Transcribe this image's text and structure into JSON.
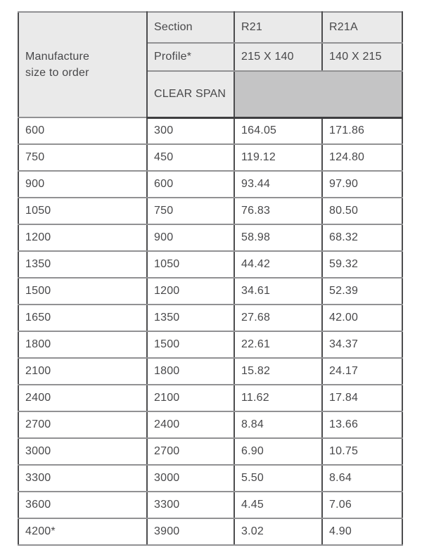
{
  "table": {
    "header": {
      "manufacture_line1": "Manufacture",
      "manufacture_line2": "size to order",
      "section_label": "Section",
      "profile_label": "Profile*",
      "clear_span_label": "CLEAR SPAN",
      "col_r21": "R21",
      "col_r21a": "R21A",
      "r21_profile": "215 X 140",
      "r21a_profile": "140 X 215"
    },
    "rows": [
      [
        "600",
        "300",
        "164.05",
        "171.86"
      ],
      [
        "750",
        "450",
        "119.12",
        "124.80"
      ],
      [
        "900",
        "600",
        "93.44",
        "97.90"
      ],
      [
        "1050",
        "750",
        "76.83",
        "80.50"
      ],
      [
        "1200",
        "900",
        "58.98",
        "68.32"
      ],
      [
        "1350",
        "1050",
        "44.42",
        "59.32"
      ],
      [
        "1500",
        "1200",
        "34.61",
        "52.39"
      ],
      [
        "1650",
        "1350",
        "27.68",
        "42.00"
      ],
      [
        "1800",
        "1500",
        "22.61",
        "34.37"
      ],
      [
        "2100",
        "1800",
        "15.82",
        "24.17"
      ],
      [
        "2400",
        "2100",
        "11.62",
        "17.84"
      ],
      [
        "2700",
        "2400",
        "8.84",
        "13.66"
      ],
      [
        "3000",
        "2700",
        "6.90",
        "10.75"
      ],
      [
        "3300",
        "3000",
        "5.50",
        "8.64"
      ],
      [
        "3600",
        "3300",
        "4.45",
        "7.06"
      ],
      [
        "4200*",
        "3900",
        "3.02",
        "4.90"
      ]
    ],
    "colors": {
      "header_bg": "#eaeaea",
      "merged_cell_bg": "#c4c4c5",
      "border_dark": "#3e3e40",
      "border_light": "#919193",
      "text": "#48484a",
      "page_bg": "#ffffff"
    }
  }
}
